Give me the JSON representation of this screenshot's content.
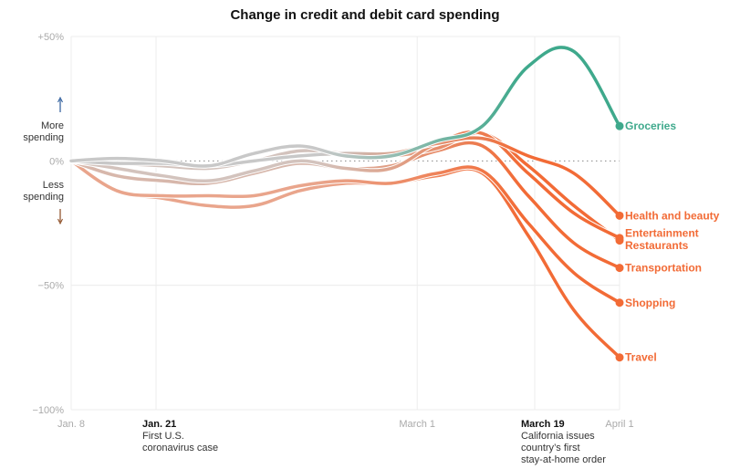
{
  "chart_data": {
    "type": "line",
    "title": "Change in credit and debit card spending",
    "x": [
      "2020-01-08",
      "2020-01-15",
      "2020-01-22",
      "2020-01-29",
      "2020-02-05",
      "2020-02-12",
      "2020-02-19",
      "2020-02-26",
      "2020-03-04",
      "2020-03-11",
      "2020-03-18",
      "2020-03-25",
      "2020-04-01"
    ],
    "ylim": [
      -100,
      50
    ],
    "y_ticks": [
      {
        "value": 50,
        "label": "+50%"
      },
      {
        "value": 0,
        "label": "0%"
      },
      {
        "value": -50,
        "label": "−50%"
      },
      {
        "value": -100,
        "label": "−100%"
      }
    ],
    "x_ticks": [
      {
        "date": "2020-01-08",
        "label": "Jan. 8"
      },
      {
        "date": "2020-03-01",
        "label": "March 1"
      },
      {
        "date": "2020-04-01",
        "label": "April 1"
      }
    ],
    "y_annotations": {
      "up": "More spending",
      "down": "Less spending"
    },
    "annotations": [
      {
        "date": "2020-01-21",
        "title": "Jan. 21",
        "lines": [
          "First U.S.",
          "coronavirus case"
        ]
      },
      {
        "date": "2020-03-19",
        "title": "March 19",
        "lines": [
          "California issues",
          "country’s first",
          "stay-at-home order"
        ]
      }
    ],
    "grid": true,
    "legend": "direct labels at line ends",
    "series": [
      {
        "name": "Travel",
        "color_start": "#e9a58c",
        "color_end": "#f26b36",
        "values": [
          0,
          -12,
          -15,
          -18,
          -18,
          -12,
          -9,
          -9,
          -6,
          -5,
          -30,
          -60,
          -79
        ]
      },
      {
        "name": "Shopping",
        "color_start": "#e9a58c",
        "color_end": "#f26b36",
        "values": [
          0,
          -12,
          -14,
          -14,
          -14,
          -10,
          -8,
          -9,
          -5,
          -4,
          -25,
          -45,
          -57
        ]
      },
      {
        "name": "Transportation",
        "color_start": "#d7b7ab",
        "color_end": "#f26b36",
        "values": [
          0,
          -6,
          -8,
          -9,
          -5,
          -1,
          -3,
          -2,
          4,
          6,
          -14,
          -33,
          -43
        ]
      },
      {
        "name": "Restaurants",
        "color_start": "#d3c3bd",
        "color_end": "#f26b36",
        "values": [
          0,
          -1,
          -2,
          -3,
          0,
          4,
          3,
          2,
          5,
          11,
          -2,
          -18,
          -32
        ]
      },
      {
        "name": "Entertainment",
        "color_start": "#d3c3bd",
        "color_end": "#f26b36",
        "values": [
          0,
          -3,
          -6,
          -8,
          -4,
          0,
          -3,
          -3,
          7,
          11,
          -5,
          -21,
          -31
        ]
      },
      {
        "name": "Health and beauty",
        "color_start": "#c8c8c8",
        "color_end": "#f26b36",
        "values": [
          0,
          -1,
          -1,
          -2,
          0,
          2,
          3,
          3,
          7,
          9,
          2,
          -5,
          -22
        ]
      },
      {
        "name": "Groceries",
        "color_start": "#c8c8c8",
        "color_end": "#3fa98c",
        "values": [
          0,
          1,
          0,
          -2,
          3,
          6,
          2,
          2,
          8,
          14,
          38,
          44,
          14
        ]
      }
    ],
    "end_labels": [
      {
        "text": "Groceries",
        "color": "#3fa98c",
        "value": 14
      },
      {
        "text": "Health and beauty",
        "color": "#f26b36",
        "value": -22
      },
      {
        "text": "Entertainment",
        "color": "#f26b36",
        "value": -29
      },
      {
        "text": "Restaurants",
        "color": "#f26b36",
        "value": -34
      },
      {
        "text": "Transportation",
        "color": "#f26b36",
        "value": -43
      },
      {
        "text": "Shopping",
        "color": "#f26b36",
        "value": -57
      },
      {
        "text": "Travel",
        "color": "#f26b36",
        "value": -79
      }
    ]
  }
}
